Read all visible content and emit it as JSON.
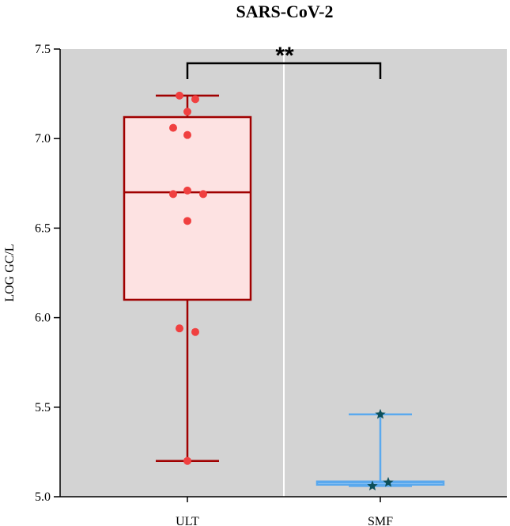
{
  "chart_data": {
    "type": "box",
    "title": "SARS-CoV-2",
    "ylabel": "LOG GC/L",
    "xlabel": "",
    "ylim": [
      5.0,
      7.5
    ],
    "yticks": [
      5.0,
      5.5,
      6.0,
      6.5,
      7.0,
      7.5
    ],
    "ytick_labels": [
      "5.0",
      "5.5",
      "6.0",
      "6.5",
      "7.0",
      "7.5"
    ],
    "categories": [
      "ULT",
      "SMF"
    ],
    "background_color": "#d3d3d3",
    "grid": false,
    "significance": {
      "between": [
        "ULT",
        "SMF"
      ],
      "label": "**"
    },
    "series": [
      {
        "category": "ULT",
        "box_color": "#a00000",
        "fill_color": "#fde2e2",
        "point_color": "#f04040",
        "marker": "circle",
        "min": 5.2,
        "q1": 6.1,
        "median": 6.7,
        "q3": 7.12,
        "max": 7.24,
        "points": [
          {
            "x_offset": -0.05,
            "y": 7.24
          },
          {
            "x_offset": 0.05,
            "y": 7.22
          },
          {
            "x_offset": 0.0,
            "y": 7.15
          },
          {
            "x_offset": -0.09,
            "y": 7.06
          },
          {
            "x_offset": 0.0,
            "y": 7.02
          },
          {
            "x_offset": -0.09,
            "y": 6.69
          },
          {
            "x_offset": 0.0,
            "y": 6.71
          },
          {
            "x_offset": 0.1,
            "y": 6.69
          },
          {
            "x_offset": 0.0,
            "y": 6.54
          },
          {
            "x_offset": -0.05,
            "y": 5.94
          },
          {
            "x_offset": 0.05,
            "y": 5.92
          },
          {
            "x_offset": 0.0,
            "y": 5.2
          }
        ]
      },
      {
        "category": "SMF",
        "box_color": "#5aa9ee",
        "fill_color": "#dbe9f7",
        "point_color": "#0d4f5a",
        "marker": "star",
        "min": 5.06,
        "q1": 5.07,
        "median": 5.08,
        "q3": 5.085,
        "max": 5.46,
        "points": [
          {
            "x_offset": 0.0,
            "y": 5.46
          },
          {
            "x_offset": 0.05,
            "y": 5.08
          },
          {
            "x_offset": -0.05,
            "y": 5.06
          }
        ]
      }
    ]
  }
}
